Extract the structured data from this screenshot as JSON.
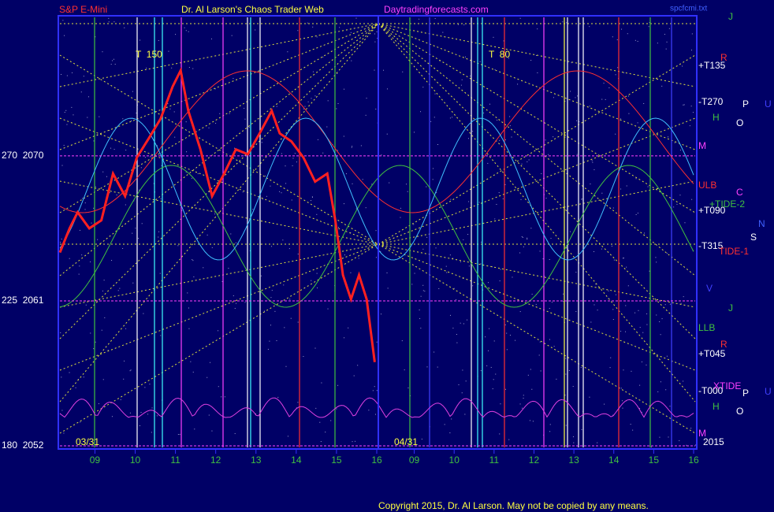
{
  "header": {
    "symbol": "S&P E-Mini",
    "site_title": "Dr. Al Larson's Chaos Trader Web",
    "url": "Daytradingforecasts.com",
    "file": "spcfcmi.txt"
  },
  "footer": "Copyright 2015, Dr. Al Larson. May not be copied by any means.",
  "chart_data": [
    {
      "type": "line",
      "color": "#ff2020",
      "date_label": "03/31",
      "cycle_label": "T  150",
      "x": [
        8.13,
        8.37,
        8.57,
        8.86,
        9.16,
        9.45,
        9.75,
        10.04,
        10.34,
        10.63,
        10.93,
        11.13,
        11.32,
        11.62,
        11.91,
        12.21,
        12.5,
        12.8,
        13.09,
        13.39,
        13.59,
        13.88,
        14.18,
        14.47,
        14.77,
        14.97,
        15.16,
        15.36,
        15.56,
        15.75,
        15.95
      ],
      "values": [
        2064.0,
        2065.5,
        2066.5,
        2065.5,
        2066.0,
        2068.9,
        2067.5,
        2069.9,
        2071.1,
        2072.3,
        2074.3,
        2075.3,
        2072.8,
        2070.4,
        2067.5,
        2068.9,
        2070.4,
        2070.1,
        2071.4,
        2072.8,
        2071.4,
        2070.9,
        2069.9,
        2068.4,
        2068.9,
        2066.0,
        2062.6,
        2061.1,
        2062.6,
        2061.1,
        2057.2
      ],
      "xlim": [
        8.13,
        16
      ],
      "xticks": [
        {
          "value": 9,
          "label": "09"
        },
        10,
        11,
        12,
        13,
        14,
        15,
        16
      ],
      "ylim": [
        2052,
        2078.7
      ],
      "yticks": [
        {
          "value": 2052,
          "label": "180  2052"
        },
        {
          "value": 2061,
          "label": "225  2061"
        },
        {
          "value": 2070,
          "label": "270  2070"
        }
      ],
      "grid": true
    },
    {
      "type": "line",
      "date_label": "04/31",
      "cycle_label": "T  80",
      "xlim": [
        8.1,
        16
      ],
      "xticks": [
        {
          "value": 9,
          "label": "09"
        },
        10,
        11,
        12,
        13,
        14,
        15,
        16
      ]
    }
  ],
  "annotations": [
    "+T135",
    "-T270",
    "M",
    "ULB",
    "+T090",
    "-T315",
    "LLB",
    "+T045",
    "-T000",
    "2015",
    "+TIDE-2",
    "TIDE-1",
    "XTIDE",
    "P",
    "O",
    "U",
    "H",
    "C",
    "N",
    "S",
    "J",
    "R",
    "V",
    "J",
    "R",
    "P",
    "U",
    "H",
    "O",
    "M"
  ]
}
